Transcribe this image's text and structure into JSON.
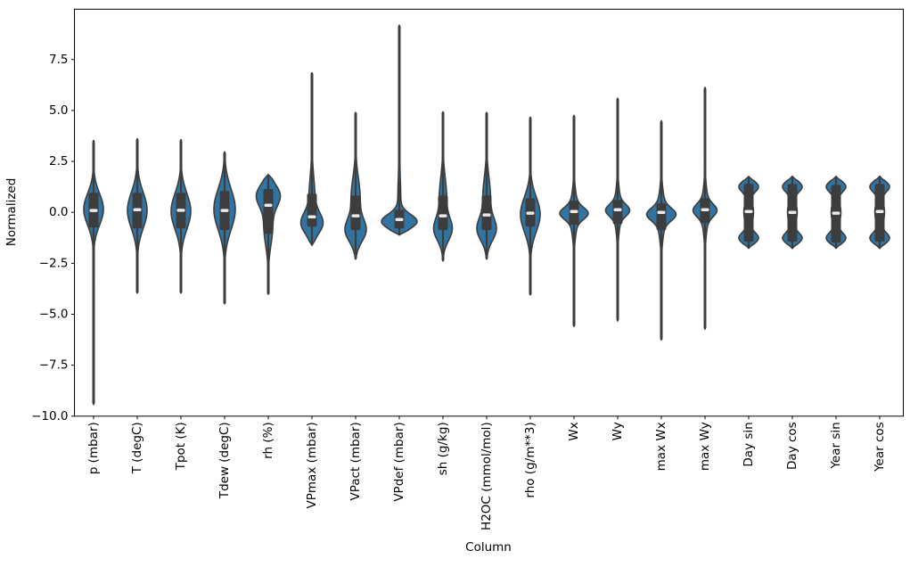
{
  "chart_data": {
    "type": "violin",
    "xlabel": "Column",
    "ylabel": "Normalized",
    "ylim": [
      -10.0,
      9.96
    ],
    "yticks": [
      7.5,
      5.0,
      2.5,
      0.0,
      -2.5,
      -5.0,
      -7.5,
      -10.0
    ],
    "grid": false,
    "legend": "none",
    "categories": [
      "p (mbar)",
      "T (degC)",
      "Tpot (K)",
      "Tdew (degC)",
      "rh (%)",
      "VPmax (mbar)",
      "VPact (mbar)",
      "VPdef (mbar)",
      "sh (g/kg)",
      "H2OC (mmol/mol)",
      "rho (g/m**3)",
      "Wx",
      "Wy",
      "max Wx",
      "max Wy",
      "Day sin",
      "Day cos",
      "Year sin",
      "Year cos"
    ],
    "colors": {
      "violin_fill": "#3274a1",
      "violin_edge": "#3d3d3d",
      "inner_box": "#3d3d3d",
      "median_dash": "#e9e9e9",
      "spine": "#000000",
      "text": "#000000",
      "background": "#ffffff"
    },
    "violins": [
      {
        "label": "p (mbar)",
        "min": -9.43,
        "max": 3.52,
        "q1": -0.74,
        "q3": 0.96,
        "median": 0.09,
        "hw": 11,
        "kde_modes": [
          [
            0.15,
            0.78,
            1
          ]
        ]
      },
      {
        "label": "T (degC)",
        "min": -3.96,
        "max": 3.6,
        "q1": -0.79,
        "q3": 0.96,
        "median": 0.13,
        "hw": 11,
        "kde_modes": [
          [
            0.1,
            0.88,
            1
          ]
        ]
      },
      {
        "label": "Tpot (K)",
        "min": -3.96,
        "max": 3.55,
        "q1": -0.79,
        "q3": 0.96,
        "median": 0.1,
        "hw": 11,
        "kde_modes": [
          [
            0.05,
            0.88,
            1
          ]
        ]
      },
      {
        "label": "Tdew (degC)",
        "min": -4.49,
        "max": 2.95,
        "q1": -0.87,
        "q3": 1.05,
        "median": 0.09,
        "hw": 12,
        "kde_modes": [
          [
            0.15,
            1.0,
            1
          ]
        ]
      },
      {
        "label": "rh (%)",
        "min": -4.0,
        "max": 1.84,
        "q1": -1.05,
        "q3": 1.14,
        "median": 0.35,
        "hw": 13.5,
        "kde_modes": [
          [
            0.85,
            0.55,
            1
          ],
          [
            -0.7,
            0.9,
            0.4
          ]
        ]
      },
      {
        "label": "VPmax (mbar)",
        "min": -1.6,
        "max": 6.85,
        "q1": -0.7,
        "q3": 0.92,
        "median": -0.22,
        "hw": 12.5,
        "kde_modes": [
          [
            -0.55,
            0.5,
            1
          ],
          [
            0.6,
            1.1,
            0.33
          ]
        ]
      },
      {
        "label": "VPact (mbar)",
        "min": -2.28,
        "max": 4.9,
        "q1": -0.87,
        "q3": 0.83,
        "median": -0.17,
        "hw": 12,
        "kde_modes": [
          [
            -0.9,
            0.55,
            1
          ],
          [
            0.7,
            1.0,
            0.48
          ]
        ]
      },
      {
        "label": "VPdef (mbar)",
        "min": -1.1,
        "max": 9.18,
        "q1": -0.79,
        "q3": 0.13,
        "median": -0.35,
        "hw": 20,
        "kde_modes": [
          [
            -0.45,
            0.35,
            1
          ],
          [
            0.5,
            1.3,
            0.09
          ]
        ]
      },
      {
        "label": "sh (g/kg)",
        "min": -2.37,
        "max": 4.93,
        "q1": -0.87,
        "q3": 0.83,
        "median": -0.17,
        "hw": 10.5,
        "kde_modes": [
          [
            -0.85,
            0.55,
            1
          ],
          [
            0.7,
            1.0,
            0.45
          ]
        ]
      },
      {
        "label": "H2OC (mmol/mol)",
        "min": -2.28,
        "max": 4.9,
        "q1": -0.87,
        "q3": 0.83,
        "median": -0.13,
        "hw": 11,
        "kde_modes": [
          [
            -0.85,
            0.55,
            1
          ],
          [
            0.7,
            1.0,
            0.45
          ]
        ]
      },
      {
        "label": "rho (g/m**3)",
        "min": -4.05,
        "max": 4.67,
        "q1": -0.7,
        "q3": 0.7,
        "median": -0.04,
        "hw": 11,
        "kde_modes": [
          [
            -0.1,
            0.85,
            1
          ]
        ]
      },
      {
        "label": "Wx",
        "min": -5.6,
        "max": 4.76,
        "q1": -0.61,
        "q3": 0.57,
        "median": 0.04,
        "hw": 16,
        "kde_modes": [
          [
            -0.05,
            0.28,
            0.8
          ],
          [
            -0.05,
            0.85,
            0.3
          ]
        ]
      },
      {
        "label": "Wy",
        "min": -5.33,
        "max": 5.6,
        "q1": -0.57,
        "q3": 0.61,
        "median": 0.13,
        "hw": 13.5,
        "kde_modes": [
          [
            0.1,
            0.28,
            0.8
          ],
          [
            0.1,
            0.85,
            0.3
          ]
        ]
      },
      {
        "label": "max Wx",
        "min": -6.26,
        "max": 4.49,
        "q1": -0.87,
        "q3": 0.44,
        "median": 0.0,
        "hw": 16.5,
        "kde_modes": [
          [
            -0.1,
            0.3,
            0.8
          ],
          [
            -0.1,
            0.9,
            0.3
          ]
        ]
      },
      {
        "label": "max Wy",
        "min": -5.73,
        "max": 6.13,
        "q1": -0.52,
        "q3": 0.7,
        "median": 0.13,
        "hw": 13.5,
        "kde_modes": [
          [
            0.1,
            0.3,
            0.8
          ],
          [
            0.1,
            0.9,
            0.3
          ]
        ]
      },
      {
        "label": "Day sin",
        "min": -1.75,
        "max": 1.75,
        "q1": -1.44,
        "q3": 1.4,
        "median": 0.04,
        "hw": 11,
        "kde_modes": [
          [
            1.27,
            0.26,
            1
          ],
          [
            -1.27,
            0.26,
            1
          ],
          [
            0,
            0.6,
            0.52
          ]
        ]
      },
      {
        "label": "Day cos",
        "min": -1.76,
        "max": 1.76,
        "q1": -1.44,
        "q3": 1.4,
        "median": 0.0,
        "hw": 11,
        "kde_modes": [
          [
            1.27,
            0.26,
            1
          ],
          [
            -1.27,
            0.26,
            1
          ],
          [
            0,
            0.6,
            0.52
          ]
        ]
      },
      {
        "label": "Year sin",
        "min": -1.75,
        "max": 1.75,
        "q1": -1.49,
        "q3": 1.35,
        "median": -0.04,
        "hw": 11,
        "kde_modes": [
          [
            1.27,
            0.26,
            1
          ],
          [
            -1.27,
            0.26,
            1
          ],
          [
            0,
            0.6,
            0.52
          ]
        ]
      },
      {
        "label": "Year cos",
        "min": -1.76,
        "max": 1.76,
        "q1": -1.44,
        "q3": 1.4,
        "median": 0.04,
        "hw": 11,
        "kde_modes": [
          [
            1.27,
            0.26,
            1
          ],
          [
            -1.27,
            0.26,
            1
          ],
          [
            0,
            0.6,
            0.52
          ]
        ]
      }
    ]
  }
}
